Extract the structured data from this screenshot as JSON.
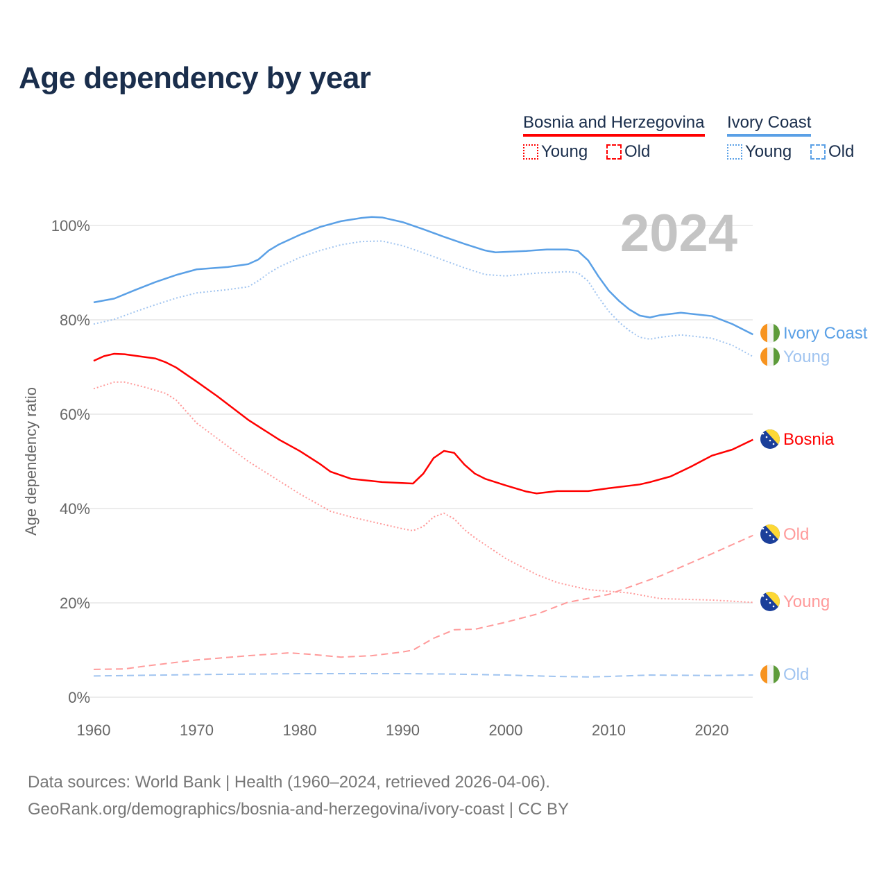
{
  "title": "Age dependency by year",
  "legend": {
    "groups": [
      {
        "name": "Bosnia and Herzegovina",
        "color": "#ff0000",
        "items": [
          "Young",
          "Old"
        ]
      },
      {
        "name": "Ivory Coast",
        "color": "#5aa0e6",
        "items": [
          "Young",
          "Old"
        ]
      }
    ]
  },
  "year_watermark": "2024",
  "footer": {
    "line1": "Data sources: World Bank | Health (1960–2024, retrieved 2026-04-06).",
    "line2": "GeoRank.org/demographics/bosnia-and-herzegovina/ivory-coast | CC BY"
  },
  "chart_data": {
    "type": "line",
    "title": "Age dependency by year",
    "xlabel": "",
    "ylabel": "Age dependency ratio",
    "xlim": [
      1960,
      2024
    ],
    "ylim": [
      0,
      100
    ],
    "xticks": [
      "1960",
      "1970",
      "1980",
      "1990",
      "2000",
      "2010",
      "2020"
    ],
    "yticks": [
      "0%",
      "20%",
      "40%",
      "60%",
      "80%",
      "100%"
    ],
    "grid": true,
    "legend_position": "top-right",
    "series": [
      {
        "name": "Ivory Coast",
        "end_label": "Ivory Coast",
        "flag": "ivory-coast",
        "color": "#5aa0e6",
        "dash": "solid",
        "x": [
          1960,
          1962,
          1964,
          1966,
          1968,
          1970,
          1973,
          1975,
          1976,
          1977,
          1978,
          1980,
          1982,
          1984,
          1986,
          1987,
          1988,
          1990,
          1992,
          1994,
          1996,
          1998,
          1999,
          2002,
          2004,
          2006,
          2007,
          2008,
          2009,
          2010,
          2011,
          2012,
          2013,
          2014,
          2015,
          2017,
          2020,
          2022,
          2024
        ],
        "y": [
          83.7,
          84.5,
          86.3,
          88.0,
          89.5,
          90.7,
          91.2,
          91.8,
          92.8,
          94.7,
          96.0,
          98.0,
          99.7,
          100.9,
          101.6,
          101.8,
          101.7,
          100.7,
          99.2,
          97.6,
          96.1,
          94.7,
          94.3,
          94.6,
          94.9,
          94.9,
          94.6,
          92.6,
          89.2,
          86.2,
          84.0,
          82.2,
          80.9,
          80.5,
          81.0,
          81.5,
          80.8,
          79.1,
          76.9
        ]
      },
      {
        "name": "Ivory Coast Young",
        "end_label": "Young",
        "flag": "ivory-coast",
        "color": "#a0c4f0",
        "dash": "dotted",
        "x": [
          1960,
          1962,
          1964,
          1966,
          1968,
          1970,
          1973,
          1975,
          1976,
          1977,
          1978,
          1980,
          1982,
          1984,
          1986,
          1988,
          1990,
          1992,
          1994,
          1996,
          1998,
          2000,
          2003,
          2006,
          2007,
          2008,
          2009,
          2010,
          2011,
          2012,
          2013,
          2014,
          2015,
          2017,
          2020,
          2022,
          2024
        ],
        "y": [
          79.1,
          80.1,
          81.7,
          83.2,
          84.6,
          85.7,
          86.4,
          87.0,
          88.3,
          89.9,
          91.2,
          93.2,
          94.7,
          95.9,
          96.6,
          96.7,
          95.7,
          94.2,
          92.6,
          91.0,
          89.6,
          89.3,
          89.9,
          90.2,
          90.0,
          88.2,
          84.8,
          81.8,
          79.5,
          77.7,
          76.3,
          75.9,
          76.3,
          76.8,
          76.1,
          74.6,
          72.2
        ]
      },
      {
        "name": "Bosnia",
        "end_label": "Bosnia",
        "flag": "bosnia",
        "color": "#ff0000",
        "dash": "solid",
        "x": [
          1960,
          1961,
          1962,
          1963,
          1965,
          1966,
          1967,
          1968,
          1970,
          1972,
          1975,
          1978,
          1980,
          1982,
          1983,
          1985,
          1988,
          1991,
          1992,
          1993,
          1994,
          1995,
          1996,
          1997,
          1998,
          2000,
          2002,
          2003,
          2005,
          2008,
          2010,
          2013,
          2014,
          2016,
          2018,
          2020,
          2022,
          2024
        ],
        "y": [
          71.3,
          72.3,
          72.8,
          72.7,
          72.1,
          71.8,
          71.0,
          69.9,
          66.9,
          63.8,
          58.8,
          54.6,
          52.2,
          49.4,
          47.8,
          46.3,
          45.6,
          45.3,
          47.4,
          50.7,
          52.2,
          51.8,
          49.3,
          47.4,
          46.3,
          44.9,
          43.6,
          43.2,
          43.7,
          43.7,
          44.3,
          45.1,
          45.6,
          46.8,
          48.9,
          51.2,
          52.5,
          54.6
        ]
      },
      {
        "name": "Bosnia Old",
        "end_label": "Old",
        "flag": "bosnia",
        "color": "#ff9a9a",
        "dash": "dashed",
        "x": [
          1960,
          1963,
          1965,
          1970,
          1975,
          1979,
          1981,
          1984,
          1987,
          1990,
          1991,
          1993,
          1995,
          1997,
          2000,
          2003,
          2006,
          2010,
          2015,
          2020,
          2024
        ],
        "y": [
          5.9,
          6.0,
          6.6,
          7.9,
          8.8,
          9.4,
          9.1,
          8.5,
          8.8,
          9.6,
          10.0,
          12.5,
          14.3,
          14.4,
          15.9,
          17.6,
          20.1,
          21.8,
          25.7,
          30.4,
          34.3
        ]
      },
      {
        "name": "Bosnia Young",
        "end_label": "Young",
        "flag": "bosnia",
        "color": "#ff9a9a",
        "dash": "dotted",
        "x": [
          1960,
          1962,
          1963,
          1965,
          1967,
          1968,
          1970,
          1975,
          1980,
          1983,
          1985,
          1990,
          1991,
          1992,
          1993,
          1994,
          1995,
          1996,
          1997,
          2000,
          2003,
          2005,
          2008,
          2012,
          2015,
          2020,
          2024
        ],
        "y": [
          65.4,
          66.8,
          66.8,
          65.7,
          64.4,
          63.0,
          58.1,
          50.0,
          43.1,
          39.4,
          38.2,
          35.7,
          35.3,
          36.2,
          38.2,
          39.0,
          37.8,
          35.5,
          33.8,
          29.4,
          26.0,
          24.3,
          22.8,
          22.1,
          20.9,
          20.6,
          20.1
        ]
      },
      {
        "name": "Ivory Coast Old",
        "end_label": "Old",
        "flag": "ivory-coast",
        "color": "#a0c4f0",
        "dash": "dashed",
        "x": [
          1960,
          1970,
          1980,
          1990,
          1995,
          2000,
          2005,
          2008,
          2010,
          2014,
          2020,
          2024
        ],
        "y": [
          4.5,
          4.8,
          5.0,
          5.0,
          4.9,
          4.7,
          4.4,
          4.3,
          4.4,
          4.7,
          4.6,
          4.7
        ]
      }
    ]
  }
}
